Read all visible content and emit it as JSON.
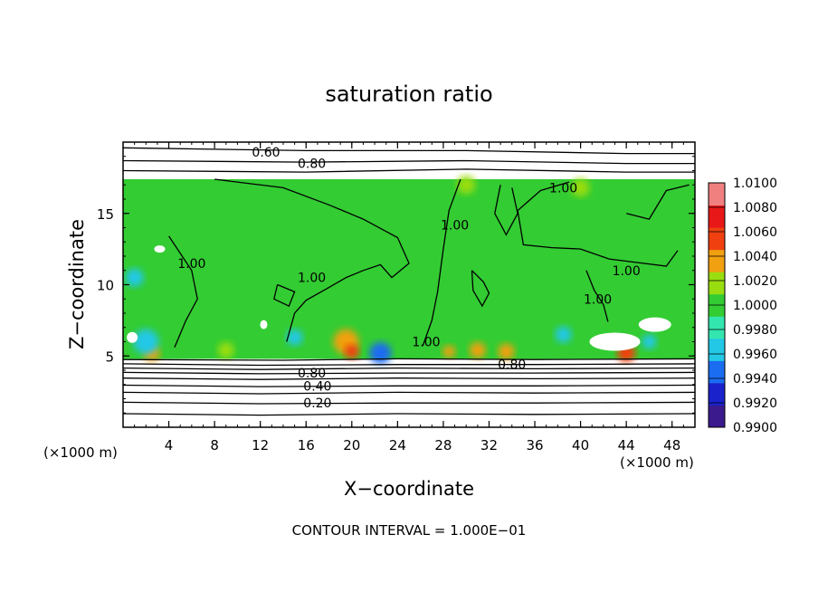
{
  "chart_data": {
    "type": "heatmap",
    "title": "saturation ratio",
    "xlabel": "X−coordinate",
    "ylabel": "Z−coordinate",
    "x_units": "(×1000 m)",
    "y_units": "(×1000 m)",
    "xlim": [
      0,
      50
    ],
    "ylim": [
      0,
      20
    ],
    "x_ticks": [
      4,
      8,
      12,
      16,
      20,
      24,
      28,
      32,
      36,
      40,
      44,
      48
    ],
    "y_ticks": [
      5,
      10,
      15
    ],
    "footer": "CONTOUR INTERVAL = 1.000E−01",
    "colorbar": {
      "levels": [
        "0.9900",
        "0.9920",
        "0.9940",
        "0.9960",
        "0.9980",
        "1.0000",
        "1.0020",
        "1.0040",
        "1.0060",
        "1.0080",
        "1.0100"
      ],
      "colors": [
        "#3a1a8c",
        "#1a22cc",
        "#1a6cf0",
        "#22c8e6",
        "#33e6b0",
        "#33cc33",
        "#99dd11",
        "#f0a010",
        "#f04010",
        "#e81818",
        "#f08080"
      ]
    },
    "contour_levels_labeled": [
      "0.20",
      "0.40",
      "0.60",
      "0.80",
      "1.00"
    ],
    "contour_labels": [
      {
        "text": "0.60",
        "x": 12.5,
        "z": 19.3
      },
      {
        "text": "0.80",
        "x": 16.5,
        "z": 18.5
      },
      {
        "text": "1.00",
        "x": 38.5,
        "z": 16.8
      },
      {
        "text": "1.00",
        "x": 29.0,
        "z": 14.2
      },
      {
        "text": "1.00",
        "x": 6.0,
        "z": 11.5
      },
      {
        "text": "1.00",
        "x": 16.5,
        "z": 10.5
      },
      {
        "text": "1.00",
        "x": 44.0,
        "z": 11.0
      },
      {
        "text": "1.00",
        "x": 41.5,
        "z": 9.0
      },
      {
        "text": "1.00",
        "x": 26.5,
        "z": 6.0
      },
      {
        "text": "0.80",
        "x": 16.5,
        "z": 3.8
      },
      {
        "text": "0.40",
        "x": 17.0,
        "z": 2.9
      },
      {
        "text": "0.20",
        "x": 17.0,
        "z": 1.7
      },
      {
        "text": "0.80",
        "x": 34.0,
        "z": 4.4
      }
    ],
    "regions": {
      "moist_layer_bottom_z": 4.8,
      "moist_layer_top_z": 17.4
    }
  }
}
